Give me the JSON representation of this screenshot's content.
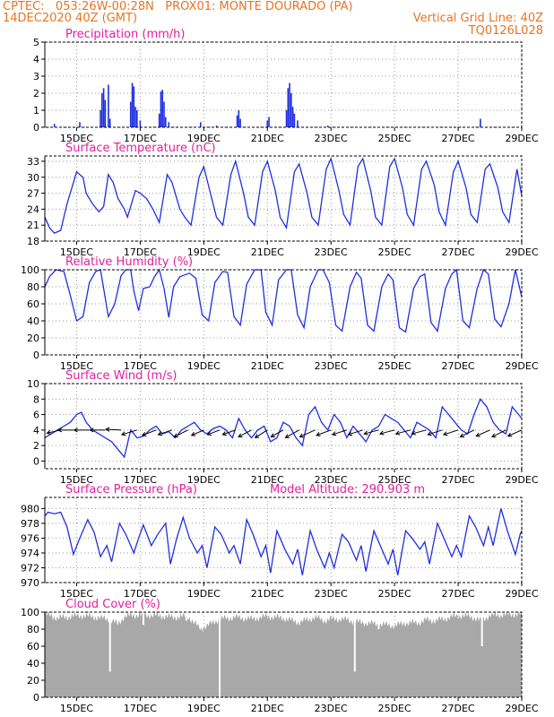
{
  "header": {
    "line1_left": "CPTEC:   053:26W-00:28N   PROX01: MONTE DOURADO (PA)",
    "line2_left": "14DEC2020 40Z (GMT)",
    "line2_right": "Vertical Grid Line: 40Z",
    "line3_right": "TQ0126L028"
  },
  "colors": {
    "header": "#e8741e",
    "title": "#e020a0",
    "series": "#1f2fe0",
    "cloud": "#a8a8a8",
    "grid": "#9a9a9a"
  },
  "x_axis": {
    "range_days": [
      14,
      29
    ],
    "tick_days": [
      15,
      17,
      19,
      21,
      23,
      25,
      27,
      29
    ],
    "tick_labels": [
      "15DEC",
      "17DEC",
      "19DEC",
      "21DEC",
      "23DEC",
      "25DEC",
      "27DEC",
      "29DEC"
    ]
  },
  "chart_data": [
    {
      "type": "bar",
      "title": "Precipitation (mm/h)",
      "ylim": [
        0,
        5
      ],
      "yticks": [
        0,
        1,
        2,
        3,
        4,
        5
      ],
      "x": [
        14.3,
        15.1,
        15.75,
        15.8,
        15.85,
        15.9,
        16.0,
        16.05,
        16.7,
        16.75,
        16.8,
        16.85,
        16.9,
        17.0,
        17.6,
        17.65,
        17.7,
        17.75,
        17.8,
        17.9,
        18.9,
        19.4,
        20.05,
        20.1,
        20.15,
        21.0,
        21.05,
        21.6,
        21.65,
        21.7,
        21.75,
        21.8,
        21.85,
        21.95,
        22.9,
        27.7
      ],
      "values": [
        0.2,
        0.3,
        1.0,
        2.0,
        2.3,
        1.6,
        2.5,
        0.5,
        1.5,
        2.6,
        2.4,
        1.2,
        1.0,
        0.4,
        0.8,
        2.1,
        2.2,
        1.5,
        0.6,
        0.3,
        0.3,
        0.1,
        0.7,
        1.0,
        0.5,
        0.4,
        0.6,
        1.0,
        2.3,
        2.6,
        2.0,
        1.2,
        0.8,
        0.4,
        0.1,
        0.5
      ]
    },
    {
      "type": "line",
      "title": "Surface Temperature (nC)",
      "ylim": [
        18,
        34
      ],
      "yticks": [
        18,
        21,
        24,
        27,
        30,
        33
      ],
      "series": [
        {
          "x": [
            14.0,
            14.15,
            14.3,
            14.5,
            14.7,
            15.0,
            15.2,
            15.3,
            15.5,
            15.7,
            15.85,
            16.0,
            16.15,
            16.3,
            16.5,
            16.6,
            16.85,
            17.0,
            17.2,
            17.4,
            17.6,
            17.85,
            18.0,
            18.25,
            18.4,
            18.6,
            18.85,
            19.0,
            19.25,
            19.4,
            19.6,
            19.85,
            20.0,
            20.25,
            20.4,
            20.6,
            20.85,
            21.0,
            21.25,
            21.4,
            21.6,
            21.85,
            22.0,
            22.25,
            22.4,
            22.6,
            22.85,
            23.0,
            23.25,
            23.4,
            23.6,
            23.85,
            24.0,
            24.25,
            24.4,
            24.6,
            24.85,
            25.0,
            25.25,
            25.4,
            25.6,
            25.85,
            26.0,
            26.25,
            26.4,
            26.6,
            26.85,
            27.0,
            27.25,
            27.4,
            27.6,
            27.85,
            28.0,
            28.25,
            28.4,
            28.6,
            28.85,
            29.0
          ],
          "values": [
            22.5,
            20.5,
            19.5,
            20.0,
            25.0,
            31.0,
            30.0,
            27.0,
            25.0,
            23.5,
            24.5,
            30.5,
            29.0,
            26.0,
            24.0,
            22.5,
            27.5,
            27.0,
            26.0,
            24.0,
            21.5,
            30.5,
            29.0,
            24.0,
            22.5,
            21.0,
            30.0,
            32.0,
            26.0,
            22.5,
            21.0,
            30.5,
            33.0,
            27.0,
            22.5,
            21.0,
            31.0,
            33.0,
            27.5,
            22.5,
            20.5,
            31.0,
            32.5,
            27.0,
            22.5,
            21.0,
            31.5,
            33.5,
            27.5,
            23.0,
            21.0,
            32.0,
            33.5,
            27.5,
            22.5,
            21.0,
            32.0,
            33.5,
            28.0,
            23.0,
            21.0,
            31.5,
            33.0,
            28.5,
            23.5,
            21.0,
            31.0,
            33.0,
            28.0,
            23.0,
            21.5,
            31.5,
            32.5,
            28.0,
            23.5,
            21.5,
            31.5,
            26.5
          ]
        }
      ]
    },
    {
      "type": "line",
      "title": "Relative Humidity (%)",
      "ylim": [
        0,
        100
      ],
      "yticks": [
        0,
        20,
        40,
        60,
        80,
        100
      ],
      "series": [
        {
          "x": [
            14.0,
            14.15,
            14.35,
            14.6,
            14.8,
            15.0,
            15.2,
            15.4,
            15.6,
            15.75,
            16.0,
            16.2,
            16.4,
            16.55,
            16.7,
            16.8,
            16.95,
            17.1,
            17.3,
            17.45,
            17.6,
            17.75,
            17.9,
            18.05,
            18.25,
            18.55,
            18.75,
            18.95,
            19.15,
            19.35,
            19.6,
            19.75,
            19.95,
            20.15,
            20.35,
            20.6,
            20.8,
            20.95,
            21.15,
            21.35,
            21.6,
            21.75,
            21.95,
            22.15,
            22.35,
            22.6,
            22.75,
            22.95,
            23.15,
            23.35,
            23.6,
            23.8,
            23.95,
            24.15,
            24.35,
            24.6,
            24.8,
            24.95,
            25.15,
            25.35,
            25.6,
            25.8,
            25.95,
            26.15,
            26.35,
            26.6,
            26.8,
            26.95,
            27.15,
            27.35,
            27.6,
            27.8,
            27.95,
            28.15,
            28.35,
            28.6,
            28.8,
            29.0
          ],
          "values": [
            80,
            92,
            100,
            98,
            70,
            40,
            45,
            85,
            98,
            100,
            45,
            60,
            93,
            100,
            100,
            75,
            52,
            78,
            80,
            92,
            100,
            78,
            44,
            80,
            92,
            96,
            90,
            47,
            40,
            85,
            98,
            97,
            45,
            35,
            83,
            100,
            100,
            50,
            35,
            88,
            100,
            100,
            47,
            32,
            80,
            100,
            100,
            85,
            35,
            28,
            80,
            97,
            90,
            35,
            28,
            80,
            95,
            88,
            32,
            27,
            78,
            92,
            95,
            38,
            28,
            78,
            95,
            100,
            40,
            32,
            78,
            100,
            95,
            42,
            33,
            60,
            100,
            68
          ]
        }
      ]
    },
    {
      "type": "line",
      "title": "Surface Wind (m/s)",
      "ylim": [
        -1,
        10
      ],
      "yticks": [
        0,
        2,
        4,
        6,
        8,
        10
      ],
      "series": [
        {
          "x": [
            14.0,
            14.2,
            14.4,
            14.6,
            14.8,
            15.0,
            15.15,
            15.3,
            15.5,
            15.7,
            15.9,
            16.1,
            16.3,
            16.5,
            16.7,
            16.9,
            17.1,
            17.3,
            17.5,
            17.7,
            17.9,
            18.1,
            18.3,
            18.5,
            18.7,
            18.9,
            19.1,
            19.3,
            19.5,
            19.7,
            19.9,
            20.1,
            20.3,
            20.5,
            20.7,
            20.9,
            21.1,
            21.3,
            21.5,
            21.7,
            21.9,
            22.1,
            22.3,
            22.5,
            22.7,
            22.9,
            23.1,
            23.3,
            23.5,
            23.7,
            23.9,
            24.1,
            24.3,
            24.5,
            24.7,
            24.9,
            25.1,
            25.3,
            25.5,
            25.7,
            25.9,
            26.1,
            26.3,
            26.5,
            26.7,
            26.9,
            27.1,
            27.3,
            27.5,
            27.7,
            27.9,
            28.1,
            28.3,
            28.5,
            28.7,
            28.9,
            29.0
          ],
          "values": [
            3.0,
            3.5,
            4.0,
            4.5,
            5.0,
            6.0,
            6.3,
            5.0,
            4.0,
            3.5,
            3.0,
            2.5,
            1.5,
            0.5,
            4.0,
            3.0,
            3.2,
            4.0,
            4.5,
            3.5,
            3.8,
            3.0,
            4.0,
            4.5,
            5.0,
            4.0,
            3.5,
            4.2,
            4.5,
            4.0,
            3.0,
            5.5,
            4.0,
            3.0,
            4.0,
            4.5,
            2.5,
            3.0,
            5.0,
            4.5,
            3.0,
            2.0,
            6.0,
            7.0,
            5.0,
            4.0,
            6.0,
            5.0,
            3.0,
            4.5,
            3.5,
            2.5,
            4.0,
            4.5,
            6.0,
            5.5,
            5.0,
            4.0,
            3.0,
            5.0,
            4.5,
            4.0,
            3.0,
            7.0,
            6.0,
            5.0,
            4.0,
            3.5,
            6.0,
            8.0,
            7.0,
            5.0,
            4.0,
            3.5,
            7.0,
            6.0,
            5.5
          ]
        }
      ],
      "arrows": {
        "x": [
          14.5,
          14.9,
          15.4,
          15.9,
          16.4,
          16.9,
          17.5,
          18.0,
          18.5,
          19.0,
          19.5,
          20.0,
          20.5,
          21.0,
          21.5,
          22.0,
          22.5,
          23.0,
          23.5,
          24.0,
          24.5,
          25.0,
          25.5,
          26.0,
          26.5,
          27.0,
          27.5,
          28.0,
          28.5,
          29.0
        ],
        "u": [
          -0.9,
          -1.0,
          -1.0,
          -1.0,
          -1.0,
          -1.0,
          -0.9,
          -0.9,
          -0.9,
          -0.8,
          -0.8,
          -0.85,
          -0.85,
          -0.8,
          -0.8,
          -0.9,
          -1.0,
          -0.95,
          -0.95,
          -0.95,
          -0.95,
          -0.95,
          -0.95,
          -0.95,
          -0.95,
          -0.95,
          -0.9,
          -0.9,
          -0.9,
          -0.9
        ],
        "v": [
          -0.2,
          0.0,
          0.0,
          0.0,
          0.05,
          -0.3,
          -0.35,
          -0.3,
          -0.45,
          -0.35,
          -0.3,
          -0.3,
          -0.45,
          -0.5,
          -0.45,
          -0.5,
          -0.45,
          -0.35,
          -0.3,
          -0.3,
          -0.25,
          -0.25,
          -0.25,
          -0.25,
          -0.3,
          -0.3,
          -0.45,
          -0.4,
          -0.45,
          -0.4
        ]
      }
    },
    {
      "type": "line",
      "title": "Surface Pressure (hPa)",
      "annotation": "Model Altitude: 290.903 m",
      "ylim": [
        970,
        981.5
      ],
      "yticks": [
        970,
        972,
        974,
        976,
        978,
        980
      ],
      "series": [
        {
          "x": [
            14.0,
            14.1,
            14.3,
            14.5,
            14.7,
            14.9,
            15.1,
            15.35,
            15.55,
            15.75,
            15.95,
            16.1,
            16.35,
            16.55,
            16.8,
            16.95,
            17.1,
            17.35,
            17.55,
            17.8,
            17.95,
            18.15,
            18.35,
            18.55,
            18.8,
            18.95,
            19.1,
            19.35,
            19.55,
            19.8,
            19.95,
            20.15,
            20.35,
            20.55,
            20.8,
            20.95,
            21.1,
            21.3,
            21.55,
            21.8,
            21.95,
            22.1,
            22.35,
            22.55,
            22.8,
            22.95,
            23.1,
            23.35,
            23.55,
            23.8,
            23.95,
            24.1,
            24.35,
            24.55,
            24.8,
            24.95,
            25.1,
            25.35,
            25.55,
            25.8,
            25.95,
            26.1,
            26.35,
            26.55,
            26.8,
            26.95,
            27.1,
            27.35,
            27.55,
            27.8,
            27.95,
            28.1,
            28.35,
            28.55,
            28.8,
            28.95,
            29.0
          ],
          "values": [
            979.0,
            979.5,
            979.3,
            979.5,
            977.5,
            973.8,
            976.0,
            978.5,
            976.8,
            973.5,
            975.0,
            972.8,
            978.0,
            976.5,
            974.0,
            976.0,
            977.8,
            975.0,
            976.5,
            978.0,
            972.5,
            976.0,
            978.8,
            976.0,
            974.0,
            975.0,
            972.0,
            977.5,
            976.5,
            974.0,
            975.0,
            972.5,
            978.5,
            976.5,
            973.5,
            975.0,
            971.3,
            977.0,
            974.5,
            972.5,
            974.5,
            971.0,
            977.0,
            974.5,
            972.0,
            974.0,
            972.0,
            976.5,
            975.5,
            973.0,
            975.0,
            971.5,
            977.0,
            975.0,
            972.5,
            974.5,
            971.0,
            977.0,
            976.0,
            974.5,
            975.5,
            972.5,
            978.0,
            976.0,
            973.5,
            975.0,
            973.5,
            979.0,
            977.5,
            975.0,
            977.5,
            975.0,
            980.0,
            977.0,
            973.8,
            976.5,
            977.0
          ]
        }
      ]
    },
    {
      "type": "area",
      "title": "Cloud Cover (%)",
      "ylim": [
        0,
        100
      ],
      "yticks": [
        0,
        20,
        40,
        60,
        80,
        100
      ],
      "series": [
        {
          "x": [
            14.0,
            14.4,
            14.8,
            15.2,
            15.6,
            16.0,
            16.3,
            16.5,
            17.0,
            17.5,
            18.0,
            18.5,
            18.9,
            19.5,
            20.0,
            20.5,
            21.0,
            21.5,
            22.0,
            22.5,
            22.8,
            23.0,
            23.3,
            23.5,
            23.9,
            24.5,
            25.0,
            25.3,
            25.8,
            26.0,
            26.3,
            26.5,
            27.0,
            27.4,
            27.7,
            28.0,
            28.5,
            29.0
          ],
          "values": [
            98,
            93,
            95,
            96,
            94,
            92,
            86,
            95,
            97,
            96,
            94,
            95,
            80,
            92,
            94,
            92,
            95,
            93,
            88,
            94,
            90,
            92,
            92,
            91,
            88,
            86,
            84,
            87,
            88,
            91,
            90,
            92,
            96,
            95,
            90,
            96,
            97,
            98
          ]
        }
      ],
      "drops": {
        "x": [
          16.05,
          17.1,
          18.45,
          19.5,
          23.75,
          24.5,
          27.75
        ],
        "values": [
          30,
          85,
          90,
          0,
          30,
          80,
          60
        ]
      }
    }
  ]
}
